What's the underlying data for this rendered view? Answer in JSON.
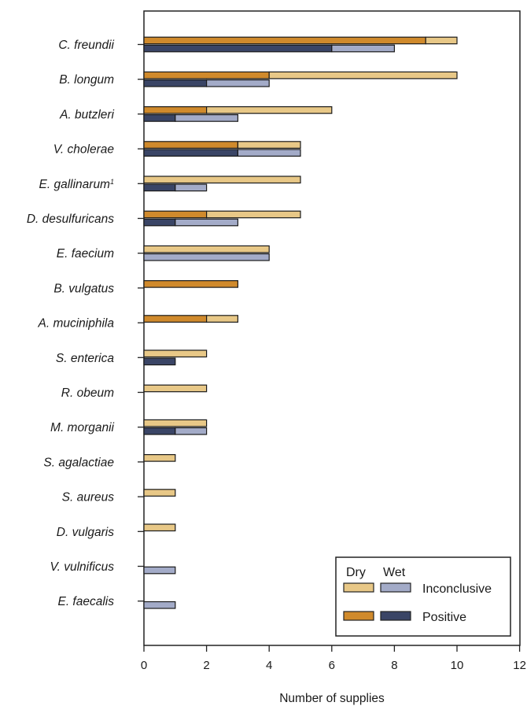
{
  "chart_data": {
    "type": "bar",
    "orientation": "horizontal",
    "stacked": true,
    "xlabel": "Number of supplies",
    "xlim": [
      0,
      12
    ],
    "xticks": [
      "0",
      "2",
      "4",
      "6",
      "8",
      "10",
      "12"
    ],
    "grid": false,
    "legend_position": "bottom-right",
    "legend": {
      "header_dry": "Dry",
      "header_wet": "Wet",
      "inconclusive": "Inconclusive",
      "positive": "Positive"
    },
    "colors": {
      "dry_positive": "#D08A2C",
      "dry_inconclusive": "#E8C887",
      "wet_positive": "#3A4566",
      "wet_inconclusive": "#A3ABC8"
    },
    "categories": [
      {
        "name": "C. freundii",
        "sup": "",
        "dry": {
          "positive": 9,
          "inconclusive": 1
        },
        "wet": {
          "positive": 6,
          "inconclusive": 2
        }
      },
      {
        "name": "B. longum",
        "sup": "",
        "dry": {
          "positive": 4,
          "inconclusive": 6
        },
        "wet": {
          "positive": 2,
          "inconclusive": 2
        }
      },
      {
        "name": "A. butzleri",
        "sup": "",
        "dry": {
          "positive": 2,
          "inconclusive": 4
        },
        "wet": {
          "positive": 1,
          "inconclusive": 2
        }
      },
      {
        "name": "V. cholerae",
        "sup": "",
        "dry": {
          "positive": 3,
          "inconclusive": 2
        },
        "wet": {
          "positive": 3,
          "inconclusive": 2
        }
      },
      {
        "name": "E. gallinarum",
        "sup": "1",
        "dry": {
          "positive": 0,
          "inconclusive": 5
        },
        "wet": {
          "positive": 1,
          "inconclusive": 1
        }
      },
      {
        "name": "D. desulfuricans",
        "sup": "",
        "dry": {
          "positive": 2,
          "inconclusive": 3
        },
        "wet": {
          "positive": 1,
          "inconclusive": 2
        }
      },
      {
        "name": "E. faecium",
        "sup": "",
        "dry": {
          "positive": 0,
          "inconclusive": 4
        },
        "wet": {
          "positive": 0,
          "inconclusive": 4
        }
      },
      {
        "name": "B. vulgatus",
        "sup": "",
        "dry": {
          "positive": 3,
          "inconclusive": 0
        },
        "wet": {
          "positive": 0,
          "inconclusive": 0
        }
      },
      {
        "name": "A. muciniphila",
        "sup": "",
        "dry": {
          "positive": 2,
          "inconclusive": 1
        },
        "wet": {
          "positive": 0,
          "inconclusive": 0
        }
      },
      {
        "name": "S. enterica",
        "sup": "",
        "dry": {
          "positive": 0,
          "inconclusive": 2
        },
        "wet": {
          "positive": 1,
          "inconclusive": 0
        }
      },
      {
        "name": "R. obeum",
        "sup": "",
        "dry": {
          "positive": 0,
          "inconclusive": 2
        },
        "wet": {
          "positive": 0,
          "inconclusive": 0
        }
      },
      {
        "name": "M. morganii",
        "sup": "",
        "dry": {
          "positive": 0,
          "inconclusive": 2
        },
        "wet": {
          "positive": 1,
          "inconclusive": 1
        }
      },
      {
        "name": "S. agalactiae",
        "sup": "",
        "dry": {
          "positive": 0,
          "inconclusive": 1
        },
        "wet": {
          "positive": 0,
          "inconclusive": 0
        }
      },
      {
        "name": "S. aureus",
        "sup": "",
        "dry": {
          "positive": 0,
          "inconclusive": 1
        },
        "wet": {
          "positive": 0,
          "inconclusive": 0
        }
      },
      {
        "name": "D. vulgaris",
        "sup": "",
        "dry": {
          "positive": 0,
          "inconclusive": 1
        },
        "wet": {
          "positive": 0,
          "inconclusive": 0
        }
      },
      {
        "name": "V. vulnificus",
        "sup": "",
        "dry": {
          "positive": 0,
          "inconclusive": 0
        },
        "wet": {
          "positive": 0,
          "inconclusive": 1
        }
      },
      {
        "name": "E. faecalis",
        "sup": "",
        "dry": {
          "positive": 0,
          "inconclusive": 0
        },
        "wet": {
          "positive": 0,
          "inconclusive": 1
        }
      }
    ]
  }
}
